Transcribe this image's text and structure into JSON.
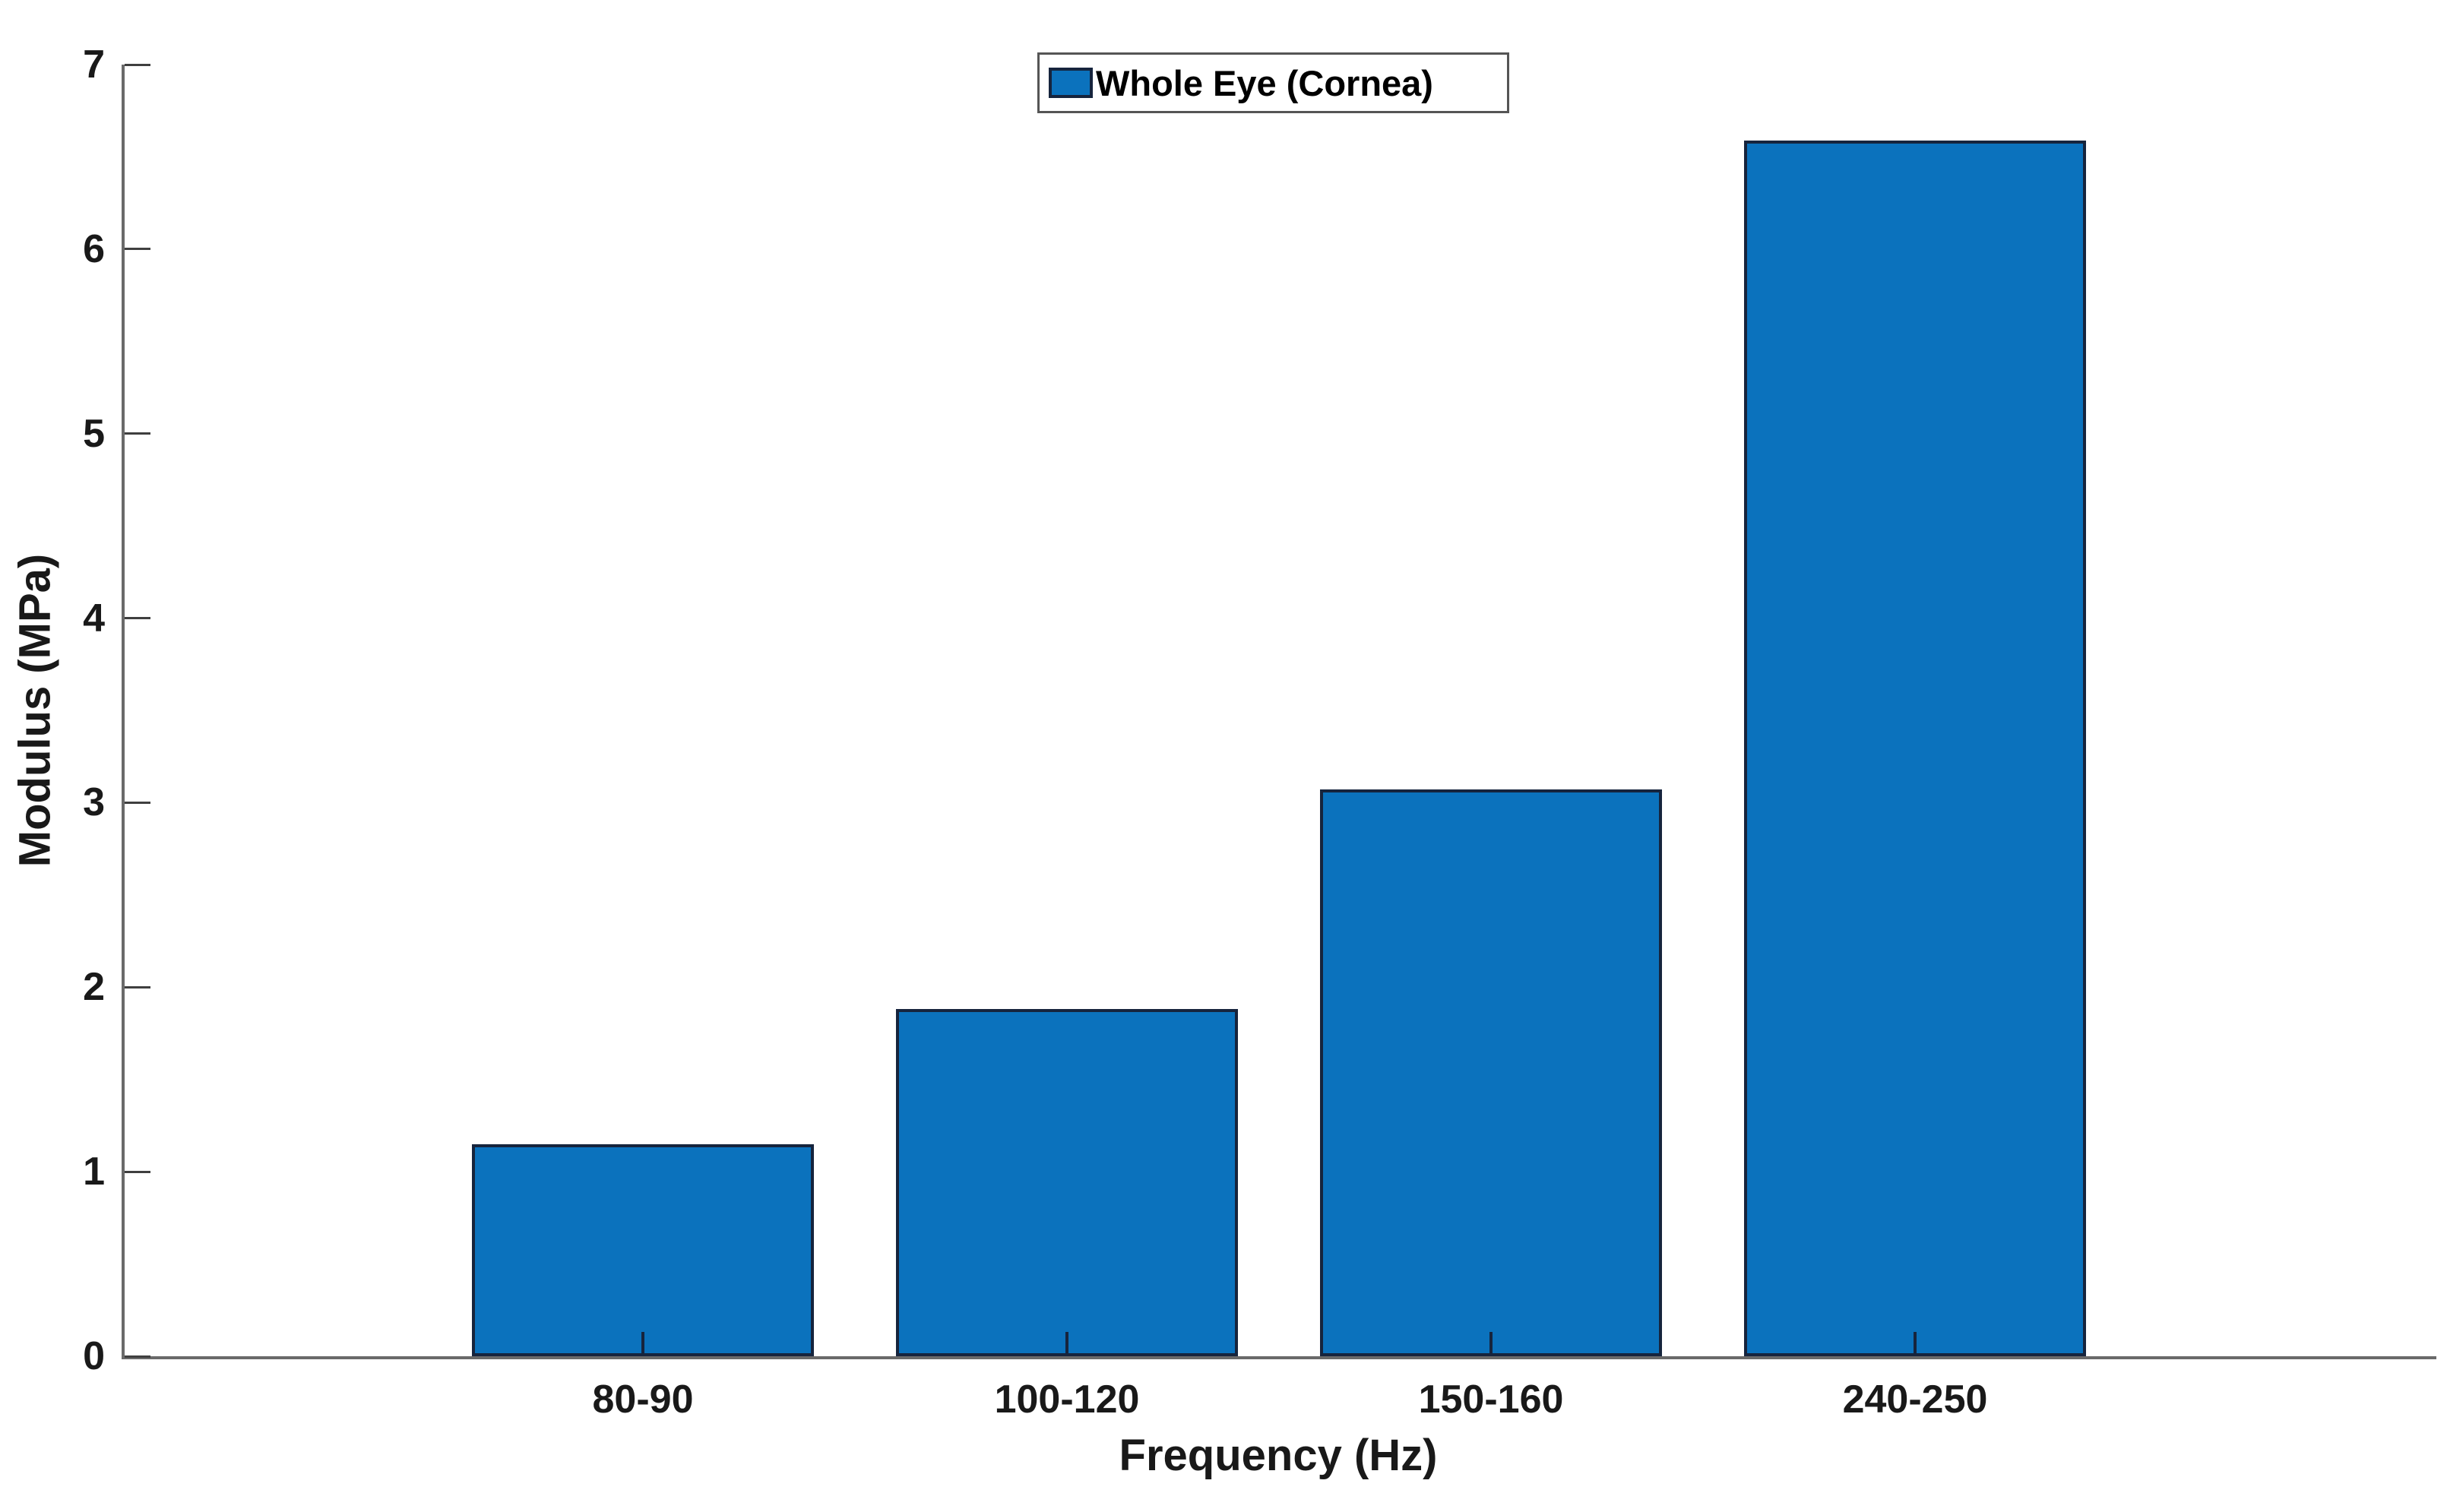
{
  "figure": {
    "background": "#ffffff"
  },
  "chart_data": {
    "type": "bar",
    "title": "",
    "legend_label": "Whole Eye (Cornea)",
    "categories": [
      "80-90",
      "100-120",
      "150-160",
      "240-250"
    ],
    "values": [
      1.15,
      1.88,
      3.07,
      6.59
    ],
    "xlabel": "Frequency (Hz)",
    "ylabel": "Modulus (MPa)",
    "ylim": [
      0,
      7
    ],
    "yticks": [
      0,
      1,
      2,
      3,
      4,
      5,
      6,
      7
    ],
    "grid": false,
    "legend_position": "top-center",
    "bar_color": "#0B72BD",
    "bar_edge_color": "#16243D",
    "axis_color": "#6a6a6a",
    "tick_color": "#3f3f3f",
    "text_color": "#191919",
    "legend_border_color": "#555555"
  }
}
